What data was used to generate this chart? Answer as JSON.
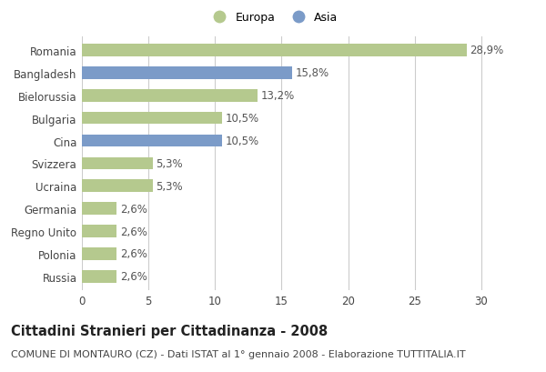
{
  "categories": [
    "Romania",
    "Bangladesh",
    "Bielorussia",
    "Bulgaria",
    "Cina",
    "Svizzera",
    "Ucraina",
    "Germania",
    "Regno Unito",
    "Polonia",
    "Russia"
  ],
  "values": [
    28.9,
    15.8,
    13.2,
    10.5,
    10.5,
    5.3,
    5.3,
    2.6,
    2.6,
    2.6,
    2.6
  ],
  "labels": [
    "28,9%",
    "15,8%",
    "13,2%",
    "10,5%",
    "10,5%",
    "5,3%",
    "5,3%",
    "2,6%",
    "2,6%",
    "2,6%",
    "2,6%"
  ],
  "colors": [
    "#b5c98e",
    "#7b9bc8",
    "#b5c98e",
    "#b5c98e",
    "#7b9bc8",
    "#b5c98e",
    "#b5c98e",
    "#b5c98e",
    "#b5c98e",
    "#b5c98e",
    "#b5c98e"
  ],
  "europa_color": "#b5c98e",
  "asia_color": "#7b9bc8",
  "title": "Cittadini Stranieri per Cittadinanza - 2008",
  "subtitle": "COMUNE DI MONTAURO (CZ) - Dati ISTAT al 1° gennaio 2008 - Elaborazione TUTTITALIA.IT",
  "legend_europa": "Europa",
  "legend_asia": "Asia",
  "xlim": [
    0,
    32
  ],
  "xticks": [
    0,
    5,
    10,
    15,
    20,
    25,
    30
  ],
  "bg_color": "#ffffff",
  "grid_color": "#cccccc",
  "bar_height": 0.55,
  "title_fontsize": 10.5,
  "subtitle_fontsize": 8,
  "label_fontsize": 8.5,
  "tick_fontsize": 8.5
}
